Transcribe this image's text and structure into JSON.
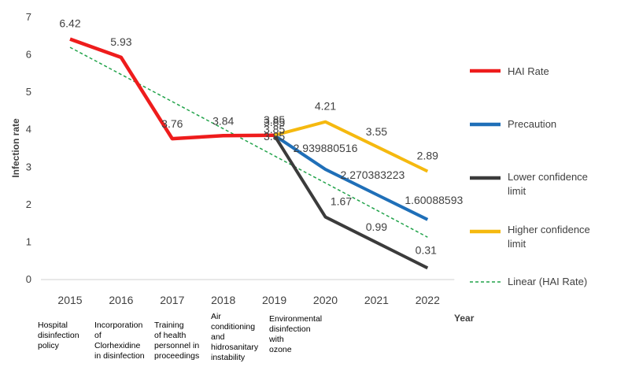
{
  "chart_data": {
    "type": "line",
    "ylabel": "Infection rate",
    "xlabel": "Year",
    "ylim": [
      0,
      7
    ],
    "yticks": [
      0,
      1,
      2,
      3,
      4,
      5,
      6,
      7
    ],
    "categories": [
      "2015",
      "2016",
      "2017",
      "2018",
      "2019",
      "2020",
      "2021",
      "2022"
    ],
    "annotations": [
      {
        "x": "2015",
        "lines": [
          "Hospital",
          "disinfection",
          "policy"
        ]
      },
      {
        "x": "2016",
        "lines": [
          "Incorporation",
          "of",
          "Clorhexidine",
          "in disinfection"
        ]
      },
      {
        "x": "2017",
        "lines": [
          "Training",
          "of health",
          "personnel in",
          "proceedings"
        ]
      },
      {
        "x": "2018",
        "lines": [
          "Air",
          "conditioning",
          "and",
          "hidrosanitary",
          "instability"
        ]
      },
      {
        "x": "2019",
        "lines": [
          "Environmental",
          "disinfection",
          "with",
          "ozone"
        ]
      }
    ],
    "series": [
      {
        "name": "HAI Rate",
        "color": "#ee1c1c",
        "points": [
          {
            "x": "2015",
            "y": 6.42,
            "label": "6.42"
          },
          {
            "x": "2016",
            "y": 5.93,
            "label": "5.93"
          },
          {
            "x": "2017",
            "y": 3.76,
            "label": "3.76"
          },
          {
            "x": "2018",
            "y": 3.84,
            "label": "3.84"
          },
          {
            "x": "2019",
            "y": 3.85,
            "label": "3.85"
          }
        ]
      },
      {
        "name": "Precaution",
        "color": "#1f6fb8",
        "points": [
          {
            "x": "2019",
            "y": 3.85,
            "label": "3.85"
          },
          {
            "x": "2020",
            "y": 2.939880516,
            "label": "2.939880516"
          },
          {
            "x": "2021",
            "y": 2.270383223,
            "label": "2.270383223"
          },
          {
            "x": "2022",
            "y": 1.60088593,
            "label": "1.60088593"
          }
        ]
      },
      {
        "name": "Lower confidence limit",
        "color": "#3b3b3b",
        "points": [
          {
            "x": "2019",
            "y": 3.85,
            "label": "3.85"
          },
          {
            "x": "2020",
            "y": 1.67,
            "label": "1.67"
          },
          {
            "x": "2021",
            "y": 0.99,
            "label": "0.99"
          },
          {
            "x": "2022",
            "y": 0.31,
            "label": "0.31"
          }
        ]
      },
      {
        "name": "Higher confidence limit",
        "color": "#f5b90f",
        "points": [
          {
            "x": "2019",
            "y": 3.85,
            "label": "3.85"
          },
          {
            "x": "2020",
            "y": 4.21,
            "label": "4.21"
          },
          {
            "x": "2021",
            "y": 3.55,
            "label": "3.55"
          },
          {
            "x": "2022",
            "y": 2.89,
            "label": "2.89"
          }
        ]
      },
      {
        "name": "Linear (HAI Rate)",
        "color": "#21a34a",
        "dashed": true,
        "points": [
          {
            "x": "2015",
            "y": 6.2
          },
          {
            "x": "2022",
            "y": 1.13
          }
        ]
      }
    ],
    "legend": "right"
  }
}
